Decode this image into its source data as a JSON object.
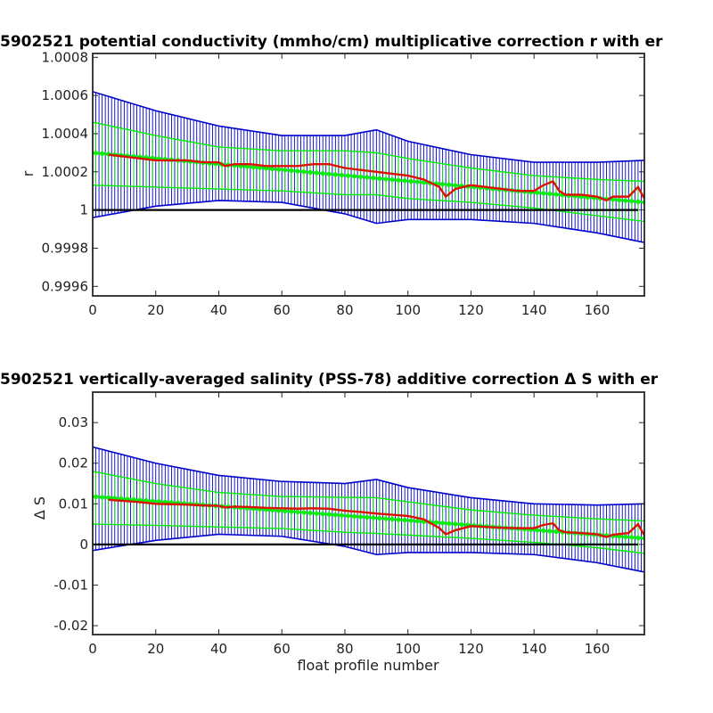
{
  "chart_data": [
    {
      "type": "line",
      "title": "5902521 potential conductivity (mmho/cm) multiplicative correction r with er",
      "xlabel": "",
      "ylabel": "r",
      "xlim": [
        0,
        175
      ],
      "ylim": [
        0.99955,
        1.00082
      ],
      "xticks": [
        0,
        20,
        40,
        60,
        80,
        100,
        120,
        140,
        160
      ],
      "xtick_labels": [
        "0",
        "20",
        "40",
        "60",
        "80",
        "100",
        "120",
        "140",
        "160"
      ],
      "yticks": [
        0.9996,
        0.9998,
        1.0,
        1.0002,
        1.0004,
        1.0006,
        1.0008
      ],
      "ytick_labels": [
        "0.9996",
        "0.9998",
        "1",
        "1.0002",
        "1.0004",
        "1.0006",
        "1.0008"
      ],
      "reference_line": 1.0,
      "colors": {
        "wide_error": "#0000cc",
        "narrow_error": "#00ee00",
        "fit": "#00ee00",
        "profile": "#dd1100",
        "reference": "#000000"
      },
      "series": [
        {
          "role": "wide-error-upper",
          "x": [
            0,
            20,
            40,
            60,
            80,
            90,
            100,
            120,
            140,
            160,
            175
          ],
          "values": [
            1.00062,
            1.00052,
            1.00044,
            1.00039,
            1.00039,
            1.00042,
            1.00036,
            1.00029,
            1.00025,
            1.00025,
            1.00026
          ]
        },
        {
          "role": "wide-error-lower",
          "x": [
            0,
            20,
            40,
            60,
            80,
            90,
            100,
            120,
            140,
            160,
            175
          ],
          "values": [
            0.99996,
            1.00002,
            1.00005,
            1.00004,
            0.99998,
            0.99993,
            0.99995,
            0.99995,
            0.99993,
            0.99988,
            0.99983
          ]
        },
        {
          "role": "narrow-error-upper",
          "x": [
            0,
            20,
            40,
            60,
            80,
            90,
            100,
            120,
            140,
            160,
            175
          ],
          "values": [
            1.00046,
            1.00039,
            1.00033,
            1.00031,
            1.00031,
            1.0003,
            1.00027,
            1.00022,
            1.00018,
            1.00016,
            1.00015
          ]
        },
        {
          "role": "narrow-error-lower",
          "x": [
            0,
            20,
            40,
            60,
            80,
            90,
            100,
            120,
            140,
            160,
            175
          ],
          "values": [
            1.00013,
            1.00012,
            1.00011,
            1.0001,
            1.00008,
            1.00008,
            1.00006,
            1.00004,
            1.00001,
            0.99997,
            0.99994
          ]
        },
        {
          "role": "fit",
          "x": [
            0,
            175
          ],
          "values": [
            1.0003,
            1.00004
          ]
        },
        {
          "role": "profile",
          "x": [
            5,
            10,
            15,
            20,
            25,
            30,
            35,
            40,
            42,
            45,
            50,
            55,
            60,
            65,
            70,
            75,
            80,
            85,
            90,
            95,
            100,
            105,
            110,
            112,
            115,
            120,
            125,
            130,
            135,
            140,
            143,
            146,
            148,
            150,
            155,
            160,
            163,
            165,
            170,
            173,
            175
          ],
          "values": [
            1.00029,
            1.00028,
            1.00027,
            1.00026,
            1.00026,
            1.00026,
            1.00025,
            1.00025,
            1.00023,
            1.00024,
            1.00024,
            1.00023,
            1.00023,
            1.00023,
            1.00024,
            1.00024,
            1.00022,
            1.00021,
            1.0002,
            1.00019,
            1.00018,
            1.00016,
            1.00012,
            1.00007,
            1.00011,
            1.00013,
            1.00012,
            1.00011,
            1.0001,
            1.0001,
            1.00013,
            1.00015,
            1.0001,
            1.00008,
            1.00008,
            1.00007,
            1.00005,
            1.00007,
            1.00007,
            1.00012,
            1.00006
          ]
        }
      ]
    },
    {
      "type": "line",
      "title": "5902521 vertically-averaged salinity (PSS-78) additive correction Δ S with er",
      "xlabel": "float profile number",
      "ylabel": "Δ S",
      "xlim": [
        0,
        175
      ],
      "ylim": [
        -0.0222,
        0.0375
      ],
      "xticks": [
        0,
        20,
        40,
        60,
        80,
        100,
        120,
        140,
        160
      ],
      "xtick_labels": [
        "0",
        "20",
        "40",
        "60",
        "80",
        "100",
        "120",
        "140",
        "160"
      ],
      "yticks": [
        -0.02,
        -0.01,
        0,
        0.01,
        0.02,
        0.03
      ],
      "ytick_labels": [
        "-0.02",
        "-0.01",
        "0",
        "0.01",
        "0.02",
        "0.03"
      ],
      "reference_line": 0,
      "colors": {
        "wide_error": "#0000cc",
        "narrow_error": "#00ee00",
        "fit": "#00ee00",
        "profile": "#dd1100",
        "reference": "#000000"
      },
      "series": [
        {
          "role": "wide-error-upper",
          "x": [
            0,
            20,
            40,
            60,
            80,
            90,
            100,
            120,
            140,
            160,
            175
          ],
          "values": [
            0.024,
            0.02,
            0.017,
            0.0155,
            0.015,
            0.016,
            0.014,
            0.0115,
            0.01,
            0.0097,
            0.01
          ]
        },
        {
          "role": "wide-error-lower",
          "x": [
            0,
            20,
            40,
            60,
            80,
            90,
            100,
            120,
            140,
            160,
            175
          ],
          "values": [
            -0.0015,
            0.001,
            0.0025,
            0.002,
            -0.0005,
            -0.0025,
            -0.002,
            -0.002,
            -0.0025,
            -0.0045,
            -0.0068
          ]
        },
        {
          "role": "narrow-error-upper",
          "x": [
            0,
            20,
            40,
            60,
            80,
            90,
            100,
            120,
            140,
            160,
            175
          ],
          "values": [
            0.018,
            0.015,
            0.0128,
            0.0118,
            0.0116,
            0.0115,
            0.0105,
            0.0085,
            0.0072,
            0.0063,
            0.0058
          ]
        },
        {
          "role": "narrow-error-lower",
          "x": [
            0,
            20,
            40,
            60,
            80,
            90,
            100,
            120,
            140,
            160,
            175
          ],
          "values": [
            0.005,
            0.0047,
            0.0043,
            0.0039,
            0.003,
            0.0027,
            0.0023,
            0.0015,
            0.0005,
            -0.0008,
            -0.0022
          ]
        },
        {
          "role": "fit",
          "x": [
            0,
            175
          ],
          "values": [
            0.0118,
            0.0015
          ]
        },
        {
          "role": "profile",
          "x": [
            5,
            10,
            15,
            20,
            25,
            30,
            35,
            40,
            42,
            45,
            50,
            55,
            60,
            65,
            70,
            75,
            80,
            85,
            90,
            95,
            100,
            105,
            110,
            112,
            115,
            120,
            125,
            130,
            135,
            140,
            143,
            146,
            148,
            150,
            155,
            160,
            163,
            165,
            170,
            173,
            175
          ],
          "values": [
            0.011,
            0.0107,
            0.0104,
            0.01,
            0.0099,
            0.0098,
            0.0096,
            0.0095,
            0.0091,
            0.0093,
            0.0092,
            0.009,
            0.0089,
            0.0088,
            0.0089,
            0.0088,
            0.0083,
            0.008,
            0.0076,
            0.0073,
            0.007,
            0.0062,
            0.004,
            0.0025,
            0.0035,
            0.0045,
            0.0043,
            0.0041,
            0.004,
            0.004,
            0.0048,
            0.0052,
            0.0035,
            0.003,
            0.0028,
            0.0025,
            0.0018,
            0.0024,
            0.0028,
            0.005,
            0.0022
          ]
        }
      ]
    }
  ]
}
